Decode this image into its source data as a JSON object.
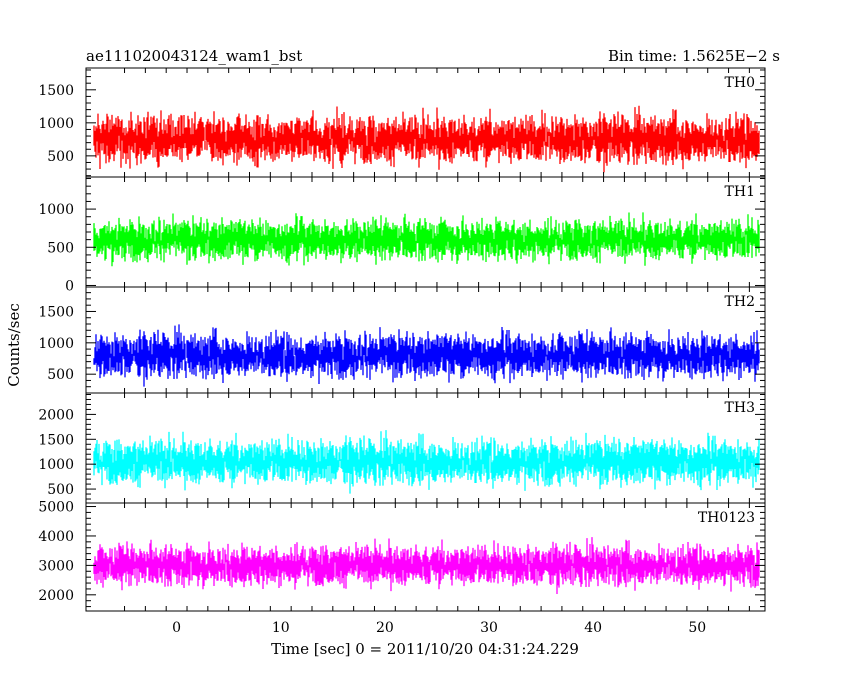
{
  "chart_data": {
    "type": "line",
    "title_left": "ae111020043124_wam1_bst",
    "title_right": "Bin time: 1.5625E−2 s",
    "xlabel": "Time [sec] 0 = 2011/10/20 04:31:24.229",
    "ylabel": "Counts/sec",
    "xlim": [
      -8.7,
      56.5
    ],
    "data_x_range": [
      -8,
      56
    ],
    "xticks": [
      0,
      10,
      20,
      30,
      40,
      50
    ],
    "xtick_labels": [
      "0",
      "10",
      "20",
      "30",
      "40",
      "50"
    ],
    "grid": false,
    "panels": [
      {
        "name": "TH0",
        "color": "#ff0000",
        "ylim": [
          180,
          1830
        ],
        "yticks": [
          500,
          1000,
          1500
        ],
        "ytick_labels": [
          "500",
          "1000",
          "1500"
        ],
        "mean": 750,
        "min_level": 250,
        "max_level": 1830
      },
      {
        "name": "TH1",
        "color": "#00ff00",
        "ylim": [
          -20,
          1420
        ],
        "yticks": [
          0,
          500,
          1000
        ],
        "ytick_labels": [
          "0",
          "500",
          "1000"
        ],
        "mean": 600,
        "min_level": 30,
        "max_level": 1400
      },
      {
        "name": "TH2",
        "color": "#0000ff",
        "ylim": [
          200,
          1890
        ],
        "yticks": [
          500,
          1000,
          1500
        ],
        "ytick_labels": [
          "500",
          "1000",
          "1500"
        ],
        "mean": 800,
        "min_level": 250,
        "max_level": 1850
      },
      {
        "name": "TH3",
        "color": "#00ffff",
        "ylim": [
          220,
          2430
        ],
        "yticks": [
          500,
          1000,
          1500,
          2000
        ],
        "ytick_labels": [
          "500",
          "1000",
          "1500",
          "2000"
        ],
        "mean": 1050,
        "min_level": 300,
        "max_level": 2400
      },
      {
        "name": "TH0123",
        "color": "#ff00ff",
        "ylim": [
          1450,
          5120
        ],
        "yticks": [
          2000,
          3000,
          4000,
          5000
        ],
        "ytick_labels": [
          "2000",
          "3000",
          "4000",
          "5000"
        ],
        "mean": 3000,
        "min_level": 1500,
        "max_level": 5050
      }
    ]
  }
}
